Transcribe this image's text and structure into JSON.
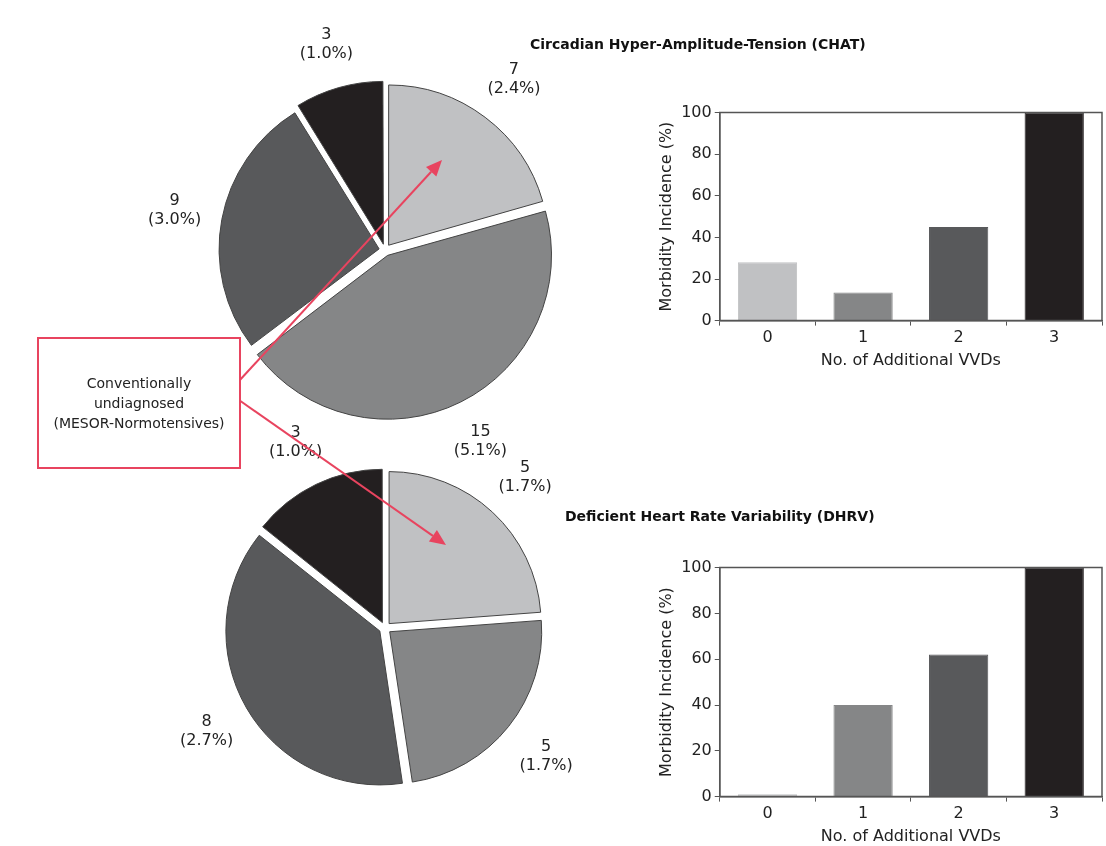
{
  "chart_data": [
    {
      "type": "pie",
      "categories": [
        null,
        null,
        null,
        null
      ],
      "values": [
        7,
        15,
        9,
        3
      ],
      "colors": [
        "#c0c1c3",
        "#858687",
        "#58595b",
        "#231f20"
      ],
      "value_labels": [
        "7\n(2.4%)",
        "15\n(5.1%)",
        "9\n(3.0%)",
        "3\n(1.0%)"
      ],
      "annotations": [
        "Conventionally\nundiagnosed\n(MESOR-Normotensives)"
      ]
    },
    {
      "type": "bar",
      "title": "Circadian Hyper-Amplitude-Tension (CHAT)",
      "categories": [
        "0",
        "1",
        "2",
        "3"
      ],
      "values": [
        28,
        13.5,
        45,
        100
      ],
      "colors": [
        "#c0c1c3",
        "#858687",
        "#58595b",
        "#231f20"
      ],
      "xlabel": "No. of Additional VVDs",
      "ylabel": "Morbidity Incidence (%)",
      "ylim": [
        0,
        100
      ],
      "yticks": [
        0,
        20,
        40,
        60,
        80,
        100
      ],
      "grid": false
    },
    {
      "type": "pie",
      "categories": [
        null,
        null,
        null,
        null
      ],
      "values": [
        5,
        5,
        8,
        3
      ],
      "colors": [
        "#c0c1c3",
        "#858687",
        "#58595b",
        "#231f20"
      ],
      "value_labels": [
        "5\n(1.7%)",
        "5\n(1.7%)",
        "8\n(2.7%)",
        "3\n(1.0%)"
      ]
    },
    {
      "type": "bar",
      "title": "Deficient Heart Rate Variability (DHRV)",
      "categories": [
        "0",
        "1",
        "2",
        "3"
      ],
      "values": [
        1,
        40,
        62,
        100
      ],
      "colors": [
        "#c0c1c3",
        "#858687",
        "#58595b",
        "#231f20"
      ],
      "xlabel": "No. of Additional VVDs",
      "ylabel": "Morbidity Incidence (%)",
      "ylim": [
        0,
        100
      ],
      "yticks": [
        0,
        20,
        40,
        60,
        80,
        100
      ],
      "grid": false
    }
  ]
}
